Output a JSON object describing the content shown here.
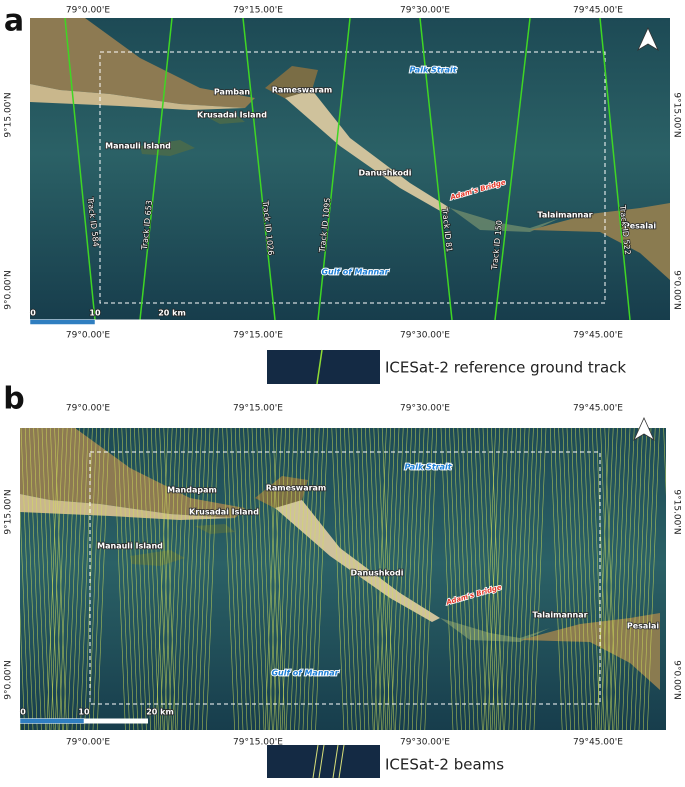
{
  "panels": [
    {
      "label": "a",
      "lon_ticks": [
        "79°0.00'E",
        "79°15.00'E",
        "79°30.00'E",
        "79°45.00'E"
      ],
      "lat_ticks": [
        "9°15.00'N",
        "9°0.00'N"
      ],
      "places": [
        "Palk Strait",
        "Pamban",
        "Rameswaram",
        "Krusadai Island",
        "Manauli Island",
        "Danushkodi",
        "Adam's Bridge",
        "Talaimannar",
        "Pesalai",
        "Gulf of Mannar"
      ],
      "tracks": [
        "Track ID 584",
        "Track ID 653",
        "Track ID 1026",
        "Track ID 1095",
        "Track ID 81",
        "Track ID 150",
        "Track ID 522"
      ],
      "scale": [
        "0",
        "10",
        "20 km"
      ],
      "legend": "ICESat-2 reference ground track"
    },
    {
      "label": "b",
      "lon_ticks": [
        "79°0.00'E",
        "79°15.00'E",
        "79°30.00'E",
        "79°45.00'E"
      ],
      "lat_ticks": [
        "9°15.00'N",
        "9°0.00'N"
      ],
      "places": [
        "Palk Strait",
        "Mandapam",
        "Rameswaram",
        "Krusadai Island",
        "Manauli Island",
        "Danushkodi",
        "Adam's Bridge",
        "Talaimannar",
        "Pesalai",
        "Gulf of Mannar"
      ],
      "scale": [
        "0",
        "10",
        "20 km"
      ],
      "legend": "ICESat-2 beams"
    }
  ]
}
